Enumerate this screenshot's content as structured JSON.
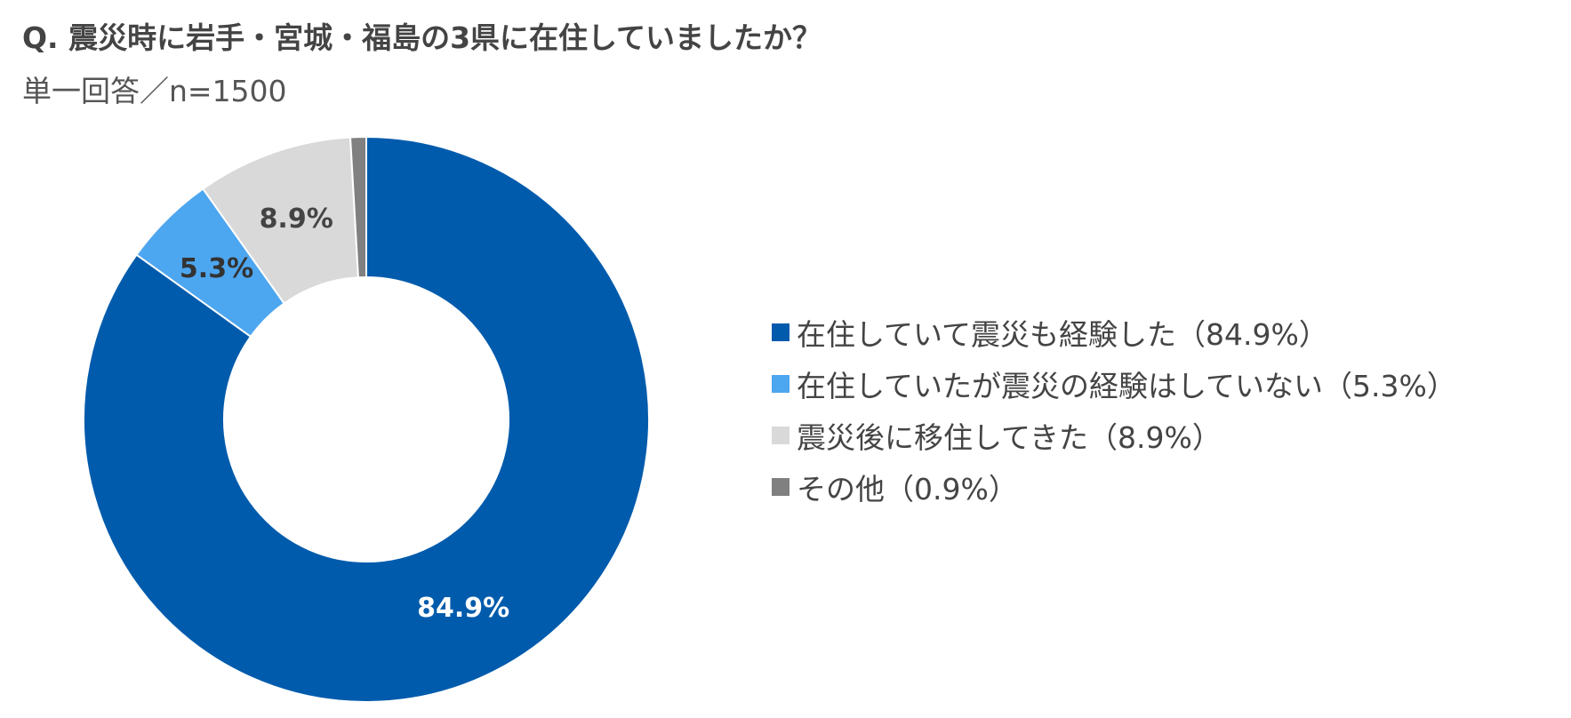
{
  "title": "Q. 震災時に岩手・宮城・福島の3県に在住していましたか？",
  "subtitle": "単一回答／n=1500",
  "chart_data": {
    "type": "pie",
    "donut": true,
    "legend_position": "right",
    "slices": [
      {
        "label": "在住していて震災も経験した（84.9%）",
        "value": 84.9,
        "data_label": "84.9%",
        "color": "#005BAC",
        "label_color": "#FFFFFF"
      },
      {
        "label": "在住していたが震災の経験はしていない（5.3%）",
        "value": 5.3,
        "data_label": "5.3%",
        "color": "#4DA6F0",
        "label_color": "#333333"
      },
      {
        "label": "震災後に移住してきた（8.9%）",
        "value": 8.9,
        "data_label": "8.9%",
        "color": "#D9D9D9",
        "label_color": "#444444"
      },
      {
        "label": "その他（0.9%）",
        "value": 0.9,
        "data_label": "",
        "color": "#808080",
        "label_color": "#444444"
      }
    ]
  }
}
